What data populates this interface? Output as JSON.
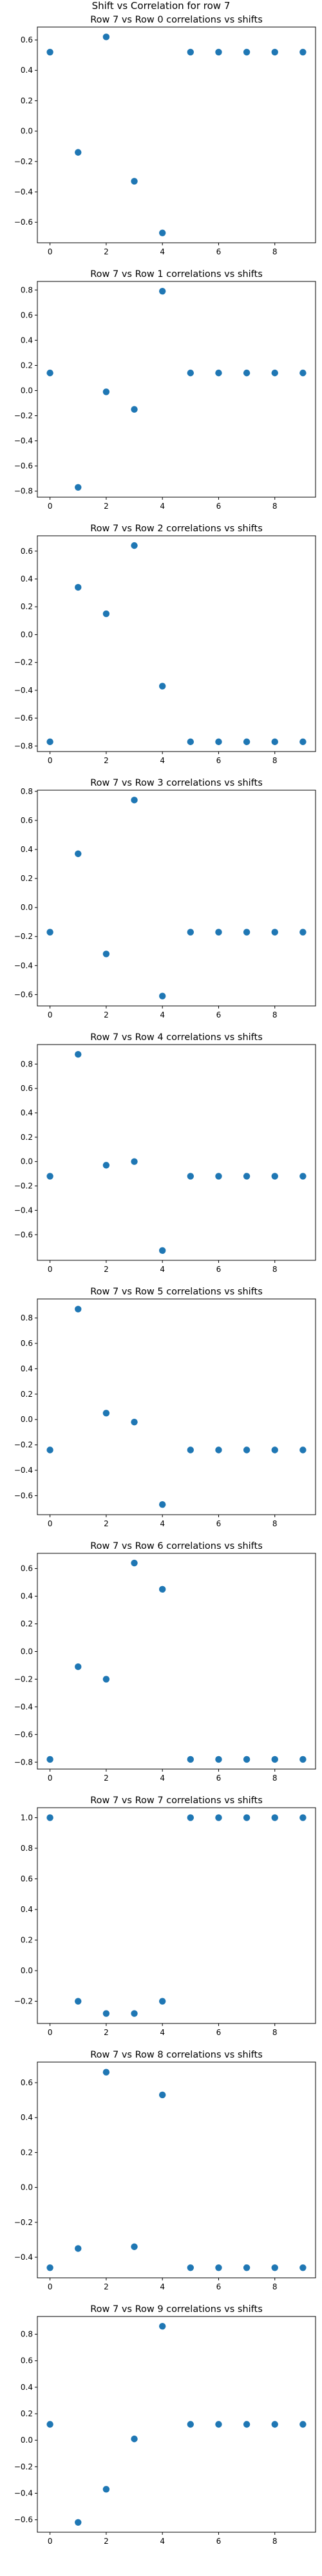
{
  "figure_title": "Shift vs Correlation for row 7",
  "chart_data": [
    {
      "type": "scatter",
      "title": "Row 7 vs Row 0 correlations vs shifts",
      "x": [
        0,
        1,
        2,
        3,
        4,
        5,
        6,
        7,
        8,
        9
      ],
      "y": [
        0.52,
        -0.14,
        0.62,
        -0.33,
        -0.67,
        0.52,
        0.52,
        0.52,
        0.52,
        0.52
      ],
      "xticks": [
        0,
        2,
        4,
        6,
        8
      ],
      "yticks": [
        -0.6,
        -0.4,
        -0.2,
        0.0,
        0.2,
        0.4,
        0.6
      ],
      "ytick_labels": [
        "−0.6",
        "−0.4",
        "−0.2",
        "0.0",
        "0.2",
        "0.4",
        "0.6"
      ],
      "xlim": [
        -0.45,
        9.45
      ],
      "ylim": [
        -0.735,
        0.685
      ],
      "color": "#1f77b4"
    },
    {
      "type": "scatter",
      "title": "Row 7 vs Row 1 correlations vs shifts",
      "x": [
        0,
        1,
        2,
        3,
        4,
        5,
        6,
        7,
        8,
        9
      ],
      "y": [
        0.14,
        -0.77,
        -0.01,
        -0.15,
        0.79,
        0.14,
        0.14,
        0.14,
        0.14,
        0.14
      ],
      "xticks": [
        0,
        2,
        4,
        6,
        8
      ],
      "yticks": [
        -0.8,
        -0.6,
        -0.4,
        -0.2,
        0.0,
        0.2,
        0.4,
        0.6,
        0.8
      ],
      "ytick_labels": [
        "−0.8",
        "−0.6",
        "−0.4",
        "−0.2",
        "0.0",
        "0.2",
        "0.4",
        "0.6",
        "0.8"
      ],
      "xlim": [
        -0.45,
        9.45
      ],
      "ylim": [
        -0.848,
        0.868
      ],
      "color": "#1f77b4"
    },
    {
      "type": "scatter",
      "title": "Row 7 vs Row 2 correlations vs shifts",
      "x": [
        0,
        1,
        2,
        3,
        4,
        5,
        6,
        7,
        8,
        9
      ],
      "y": [
        -0.77,
        0.34,
        0.15,
        0.64,
        -0.37,
        -0.77,
        -0.77,
        -0.77,
        -0.77,
        -0.77
      ],
      "xticks": [
        0,
        2,
        4,
        6,
        8
      ],
      "yticks": [
        -0.8,
        -0.6,
        -0.4,
        -0.2,
        0.0,
        0.2,
        0.4,
        0.6
      ],
      "ytick_labels": [
        "−0.8",
        "−0.6",
        "−0.4",
        "−0.2",
        "0.0",
        "0.2",
        "0.4",
        "0.6"
      ],
      "xlim": [
        -0.45,
        9.45
      ],
      "ylim": [
        -0.84,
        0.71
      ],
      "color": "#1f77b4"
    },
    {
      "type": "scatter",
      "title": "Row 7 vs Row 3 correlations vs shifts",
      "x": [
        0,
        1,
        2,
        3,
        4,
        5,
        6,
        7,
        8,
        9
      ],
      "y": [
        -0.17,
        0.37,
        -0.32,
        0.74,
        -0.61,
        -0.17,
        -0.17,
        -0.17,
        -0.17,
        -0.17
      ],
      "xticks": [
        0,
        2,
        4,
        6,
        8
      ],
      "yticks": [
        -0.6,
        -0.4,
        -0.2,
        0.0,
        0.2,
        0.4,
        0.6,
        0.8
      ],
      "ytick_labels": [
        "−0.6",
        "−0.4",
        "−0.2",
        "0.0",
        "0.2",
        "0.4",
        "0.6",
        "0.8"
      ],
      "xlim": [
        -0.45,
        9.45
      ],
      "ylim": [
        -0.678,
        0.808
      ],
      "color": "#1f77b4"
    },
    {
      "type": "scatter",
      "title": "Row 7 vs Row 4 correlations vs shifts",
      "x": [
        0,
        1,
        2,
        3,
        4,
        5,
        6,
        7,
        8,
        9
      ],
      "y": [
        -0.12,
        0.88,
        -0.03,
        0.0,
        -0.73,
        -0.12,
        -0.12,
        -0.12,
        -0.12,
        -0.12
      ],
      "xticks": [
        0,
        2,
        4,
        6,
        8
      ],
      "yticks": [
        -0.6,
        -0.4,
        -0.2,
        0.0,
        0.2,
        0.4,
        0.6,
        0.8
      ],
      "ytick_labels": [
        "−0.6",
        "−0.4",
        "−0.2",
        "0.0",
        "0.2",
        "0.4",
        "0.6",
        "0.8"
      ],
      "xlim": [
        -0.45,
        9.45
      ],
      "ylim": [
        -0.81,
        0.96
      ],
      "color": "#1f77b4"
    },
    {
      "type": "scatter",
      "title": "Row 7 vs Row 5 correlations vs shifts",
      "x": [
        0,
        1,
        2,
        3,
        4,
        5,
        6,
        7,
        8,
        9
      ],
      "y": [
        -0.24,
        0.87,
        0.05,
        -0.02,
        -0.67,
        -0.24,
        -0.24,
        -0.24,
        -0.24,
        -0.24
      ],
      "xticks": [
        0,
        2,
        4,
        6,
        8
      ],
      "yticks": [
        -0.6,
        -0.4,
        -0.2,
        0.0,
        0.2,
        0.4,
        0.6,
        0.8
      ],
      "ytick_labels": [
        "−0.6",
        "−0.4",
        "−0.2",
        "0.0",
        "0.2",
        "0.4",
        "0.6",
        "0.8"
      ],
      "xlim": [
        -0.45,
        9.45
      ],
      "ylim": [
        -0.75,
        0.95
      ],
      "color": "#1f77b4"
    },
    {
      "type": "scatter",
      "title": "Row 7 vs Row 6 correlations vs shifts",
      "x": [
        0,
        1,
        2,
        3,
        4,
        5,
        6,
        7,
        8,
        9
      ],
      "y": [
        -0.78,
        -0.11,
        -0.2,
        0.64,
        0.45,
        -0.78,
        -0.78,
        -0.78,
        -0.78,
        -0.78
      ],
      "xticks": [
        0,
        2,
        4,
        6,
        8
      ],
      "yticks": [
        -0.8,
        -0.6,
        -0.4,
        -0.2,
        0.0,
        0.2,
        0.4,
        0.6
      ],
      "ytick_labels": [
        "−0.8",
        "−0.6",
        "−0.4",
        "−0.2",
        "0.0",
        "0.2",
        "0.4",
        "0.6"
      ],
      "xlim": [
        -0.45,
        9.45
      ],
      "ylim": [
        -0.85,
        0.71
      ],
      "color": "#1f77b4"
    },
    {
      "type": "scatter",
      "title": "Row 7 vs Row 7 correlations vs shifts",
      "x": [
        0,
        1,
        2,
        3,
        4,
        5,
        6,
        7,
        8,
        9
      ],
      "y": [
        1.0,
        -0.2,
        -0.28,
        -0.28,
        -0.2,
        1.0,
        1.0,
        1.0,
        1.0,
        1.0
      ],
      "xticks": [
        0,
        2,
        4,
        6,
        8
      ],
      "yticks": [
        -0.2,
        0.0,
        0.2,
        0.4,
        0.6,
        0.8,
        1.0
      ],
      "ytick_labels": [
        "−0.2",
        "0.0",
        "0.2",
        "0.4",
        "0.6",
        "0.8",
        "1.0"
      ],
      "xlim": [
        -0.45,
        9.45
      ],
      "ylim": [
        -0.345,
        1.065
      ],
      "color": "#1f77b4"
    },
    {
      "type": "scatter",
      "title": "Row 7 vs Row 8 correlations vs shifts",
      "x": [
        0,
        1,
        2,
        3,
        4,
        5,
        6,
        7,
        8,
        9
      ],
      "y": [
        -0.46,
        -0.35,
        0.66,
        -0.34,
        0.53,
        -0.46,
        -0.46,
        -0.46,
        -0.46,
        -0.46
      ],
      "xticks": [
        0,
        2,
        4,
        6,
        8
      ],
      "yticks": [
        -0.4,
        -0.2,
        0.0,
        0.2,
        0.4,
        0.6
      ],
      "ytick_labels": [
        "−0.4",
        "−0.2",
        "0.0",
        "0.2",
        "0.4",
        "0.6"
      ],
      "xlim": [
        -0.45,
        9.45
      ],
      "ylim": [
        -0.518,
        0.718
      ],
      "color": "#1f77b4"
    },
    {
      "type": "scatter",
      "title": "Row 7 vs Row 9 correlations vs shifts",
      "x": [
        0,
        1,
        2,
        3,
        4,
        5,
        6,
        7,
        8,
        9
      ],
      "y": [
        0.12,
        -0.62,
        -0.37,
        0.01,
        0.86,
        0.12,
        0.12,
        0.12,
        0.12,
        0.12
      ],
      "xticks": [
        0,
        2,
        4,
        6,
        8
      ],
      "yticks": [
        -0.6,
        -0.4,
        -0.2,
        0.0,
        0.2,
        0.4,
        0.6,
        0.8
      ],
      "ytick_labels": [
        "−0.6",
        "−0.4",
        "−0.2",
        "0.0",
        "0.2",
        "0.4",
        "0.6",
        "0.8"
      ],
      "xlim": [
        -0.45,
        9.45
      ],
      "ylim": [
        -0.694,
        0.934
      ],
      "color": "#1f77b4"
    }
  ]
}
